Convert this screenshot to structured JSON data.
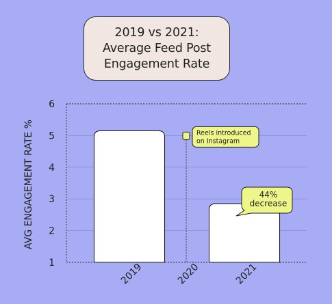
{
  "chart_data": {
    "type": "bar",
    "title_lines": [
      "2019 vs 2021:",
      "Average Feed Post",
      "Engagement Rate"
    ],
    "xlabel": "",
    "ylabel": "AVG ENGAGEMENT RATE %",
    "categories": [
      "2019",
      "2020",
      "2021"
    ],
    "values": [
      5.15,
      null,
      2.85
    ],
    "ylim": [
      1,
      6
    ],
    "yticks": [
      "1",
      "2",
      "3",
      "4",
      "5",
      "6"
    ],
    "grid": true,
    "annotations": [
      {
        "text_lines": [
          "Reels introduced",
          "on Instagram"
        ],
        "x": "2020",
        "y": 5.0,
        "style": "callout-with-dashed-line"
      },
      {
        "text_lines": [
          "44%",
          "decrease"
        ],
        "x": "2021",
        "y": 2.85,
        "style": "speech-bubble"
      }
    ],
    "colors": {
      "background": "#a7acf4",
      "bar_fill": "#ffffff",
      "gridline": "#8f93dc",
      "axis": "#2a2a2a",
      "title_box": "#f1e6e1",
      "callout": "#eef58a"
    }
  }
}
